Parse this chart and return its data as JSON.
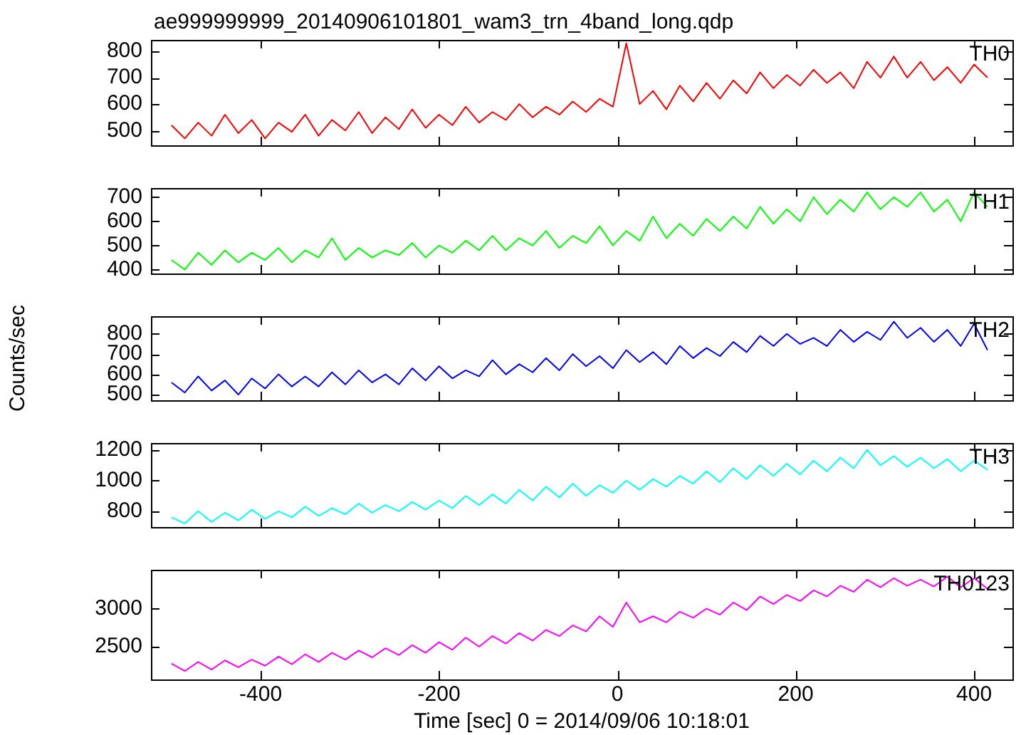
{
  "chart_data": [
    {
      "type": "line",
      "title": "ae999999999_20140906101801_wam3_trn_4band_long.qdp",
      "x": [
        -500,
        -485,
        -470,
        -455,
        -440,
        -425,
        -410,
        -395,
        -380,
        -365,
        -350,
        -335,
        -320,
        -305,
        -290,
        -275,
        -260,
        -245,
        -230,
        -215,
        -200,
        -185,
        -170,
        -155,
        -140,
        -125,
        -110,
        -95,
        -80,
        -65,
        -50,
        -35,
        -20,
        -5,
        10,
        25,
        40,
        55,
        70,
        85,
        100,
        115,
        130,
        145,
        160,
        175,
        190,
        205,
        220,
        235,
        250,
        265,
        280,
        295,
        310,
        325,
        340,
        355,
        370,
        385,
        400,
        415
      ],
      "series": [
        {
          "name": "TH0",
          "color": "#ff0000",
          "values": [
            520,
            470,
            530,
            480,
            560,
            490,
            540,
            470,
            530,
            495,
            560,
            480,
            540,
            500,
            570,
            490,
            550,
            505,
            580,
            510,
            560,
            520,
            590,
            530,
            570,
            540,
            600,
            550,
            590,
            560,
            610,
            570,
            620,
            590,
            830,
            600,
            650,
            580,
            670,
            610,
            680,
            620,
            690,
            640,
            720,
            660,
            710,
            670,
            730,
            680,
            720,
            660,
            760,
            700,
            780,
            700,
            760,
            690,
            740,
            680,
            750,
            700
          ]
        }
      ],
      "xlim": [
        -523,
        443
      ],
      "xticks": [
        -400,
        -200,
        0,
        200,
        400
      ],
      "ylim": [
        444,
        843
      ],
      "yticks": [
        500,
        600,
        700,
        800
      ],
      "tick_labels": "y",
      "grid": false,
      "marker": "none",
      "line_style": "solid"
    },
    {
      "type": "line",
      "x": [
        -500,
        -485,
        -470,
        -455,
        -440,
        -425,
        -410,
        -395,
        -380,
        -365,
        -350,
        -335,
        -320,
        -305,
        -290,
        -275,
        -260,
        -245,
        -230,
        -215,
        -200,
        -185,
        -170,
        -155,
        -140,
        -125,
        -110,
        -95,
        -80,
        -65,
        -50,
        -35,
        -20,
        -5,
        10,
        25,
        40,
        55,
        70,
        85,
        100,
        115,
        130,
        145,
        160,
        175,
        190,
        205,
        220,
        235,
        250,
        265,
        280,
        295,
        310,
        325,
        340,
        355,
        370,
        385,
        400,
        415
      ],
      "series": [
        {
          "name": "TH1",
          "color": "#00ff00",
          "values": [
            440,
            400,
            470,
            420,
            480,
            430,
            470,
            440,
            490,
            430,
            480,
            450,
            530,
            440,
            490,
            450,
            480,
            460,
            510,
            450,
            500,
            470,
            520,
            480,
            540,
            480,
            530,
            500,
            560,
            490,
            540,
            510,
            580,
            500,
            560,
            520,
            620,
            530,
            590,
            540,
            610,
            560,
            620,
            570,
            660,
            590,
            650,
            600,
            700,
            630,
            690,
            640,
            720,
            650,
            700,
            660,
            720,
            640,
            690,
            600,
            720,
            660
          ]
        }
      ],
      "xlim": [
        -523,
        443
      ],
      "xticks": [
        -400,
        -200,
        0,
        200,
        400
      ],
      "ylim": [
        384,
        738
      ],
      "yticks": [
        400,
        500,
        600,
        700
      ],
      "tick_labels": "y",
      "grid": false,
      "marker": "none",
      "line_style": "solid"
    },
    {
      "type": "line",
      "ylabel": "Counts/sec",
      "x": [
        -500,
        -485,
        -470,
        -455,
        -440,
        -425,
        -410,
        -395,
        -380,
        -365,
        -350,
        -335,
        -320,
        -305,
        -290,
        -275,
        -260,
        -245,
        -230,
        -215,
        -200,
        -185,
        -170,
        -155,
        -140,
        -125,
        -110,
        -95,
        -80,
        -65,
        -50,
        -35,
        -20,
        -5,
        10,
        25,
        40,
        55,
        70,
        85,
        100,
        115,
        130,
        145,
        160,
        175,
        190,
        205,
        220,
        235,
        250,
        265,
        280,
        295,
        310,
        325,
        340,
        355,
        370,
        385,
        400,
        415
      ],
      "series": [
        {
          "name": "TH2",
          "color": "#0000ff",
          "values": [
            560,
            510,
            590,
            520,
            570,
            500,
            580,
            530,
            600,
            540,
            590,
            540,
            610,
            550,
            620,
            560,
            600,
            550,
            630,
            570,
            640,
            580,
            620,
            590,
            670,
            600,
            650,
            610,
            680,
            620,
            700,
            640,
            690,
            630,
            720,
            660,
            710,
            650,
            740,
            680,
            730,
            690,
            760,
            710,
            790,
            740,
            800,
            750,
            780,
            740,
            820,
            760,
            810,
            770,
            860,
            780,
            830,
            760,
            820,
            740,
            850,
            720
          ]
        }
      ],
      "xlim": [
        -523,
        443
      ],
      "xticks": [
        -400,
        -200,
        0,
        200,
        400
      ],
      "ylim": [
        472,
        887
      ],
      "yticks": [
        500,
        600,
        700,
        800
      ],
      "tick_labels": "y",
      "grid": false,
      "marker": "none",
      "line_style": "solid"
    },
    {
      "type": "line",
      "x": [
        -500,
        -485,
        -470,
        -455,
        -440,
        -425,
        -410,
        -395,
        -380,
        -365,
        -350,
        -335,
        -320,
        -305,
        -290,
        -275,
        -260,
        -245,
        -230,
        -215,
        -200,
        -185,
        -170,
        -155,
        -140,
        -125,
        -110,
        -95,
        -80,
        -65,
        -50,
        -35,
        -20,
        -5,
        10,
        25,
        40,
        55,
        70,
        85,
        100,
        115,
        130,
        145,
        160,
        175,
        190,
        205,
        220,
        235,
        250,
        265,
        280,
        295,
        310,
        325,
        340,
        355,
        370,
        385,
        400,
        415
      ],
      "series": [
        {
          "name": "TH3",
          "color": "#00ffff",
          "values": [
            760,
            720,
            800,
            730,
            790,
            740,
            810,
            750,
            800,
            760,
            830,
            770,
            820,
            780,
            850,
            790,
            840,
            800,
            860,
            810,
            870,
            820,
            900,
            840,
            910,
            850,
            940,
            870,
            960,
            890,
            980,
            900,
            970,
            920,
            1000,
            940,
            1010,
            960,
            1030,
            980,
            1060,
            990,
            1080,
            1010,
            1100,
            1030,
            1110,
            1040,
            1130,
            1060,
            1150,
            1080,
            1200,
            1100,
            1160,
            1090,
            1150,
            1080,
            1140,
            1060,
            1130,
            1070
          ]
        }
      ],
      "xlim": [
        -523,
        443
      ],
      "xticks": [
        -400,
        -200,
        0,
        200,
        400
      ],
      "ylim": [
        697,
        1245
      ],
      "yticks": [
        800,
        1000,
        1200
      ],
      "tick_labels": "y",
      "grid": false,
      "marker": "none",
      "line_style": "solid"
    },
    {
      "type": "line",
      "xlabel": "Time [sec] 0 = 2014/09/06 10:18:01",
      "x": [
        -500,
        -485,
        -470,
        -455,
        -440,
        -425,
        -410,
        -395,
        -380,
        -365,
        -350,
        -335,
        -320,
        -305,
        -290,
        -275,
        -260,
        -245,
        -230,
        -215,
        -200,
        -185,
        -170,
        -155,
        -140,
        -125,
        -110,
        -95,
        -80,
        -65,
        -50,
        -35,
        -20,
        -5,
        10,
        25,
        40,
        55,
        70,
        85,
        100,
        115,
        130,
        145,
        160,
        175,
        190,
        205,
        220,
        235,
        250,
        265,
        280,
        295,
        310,
        325,
        340,
        355,
        370,
        385,
        400,
        415
      ],
      "series": [
        {
          "name": "TH0123",
          "color": "#ff00ff",
          "values": [
            2280,
            2180,
            2300,
            2200,
            2320,
            2230,
            2330,
            2250,
            2370,
            2270,
            2400,
            2300,
            2420,
            2330,
            2450,
            2360,
            2480,
            2390,
            2520,
            2420,
            2560,
            2460,
            2620,
            2500,
            2640,
            2540,
            2680,
            2580,
            2720,
            2640,
            2780,
            2700,
            2900,
            2760,
            3080,
            2820,
            2900,
            2820,
            2960,
            2880,
            3000,
            2920,
            3080,
            2980,
            3160,
            3060,
            3180,
            3100,
            3240,
            3160,
            3300,
            3220,
            3380,
            3280,
            3400,
            3300,
            3380,
            3290,
            3420,
            3280,
            3400,
            3260
          ]
        }
      ],
      "xlim": [
        -523,
        443
      ],
      "xticks": [
        -400,
        -200,
        0,
        200,
        400
      ],
      "ylim": [
        2070,
        3510
      ],
      "yticks": [
        2500,
        3000
      ],
      "grid": false,
      "marker": "none",
      "line_style": "solid"
    }
  ]
}
